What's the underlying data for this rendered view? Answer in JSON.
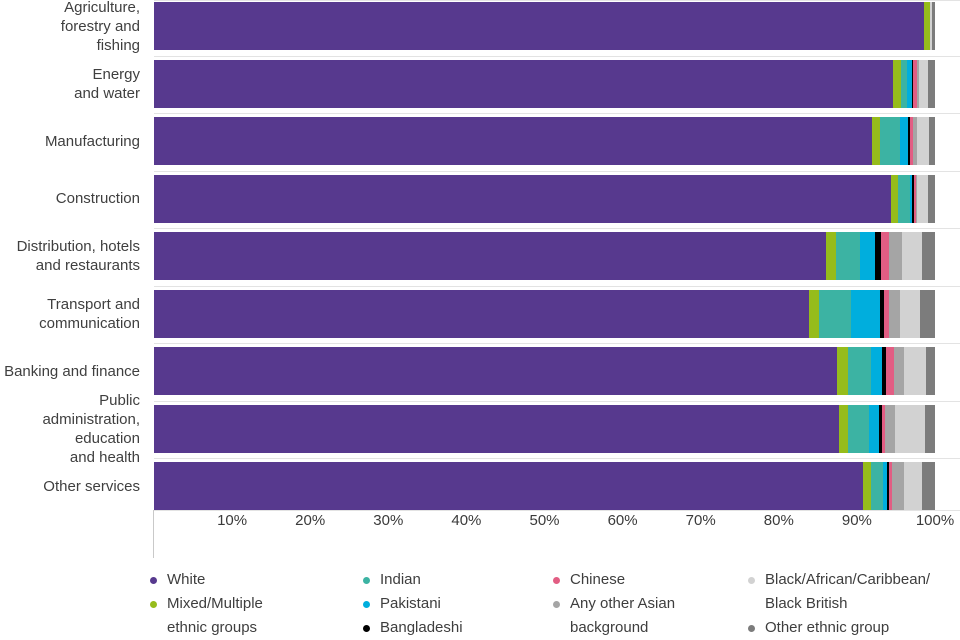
{
  "chart_data": {
    "type": "bar",
    "orientation": "horizontal-stacked",
    "title": "",
    "xlabel": "",
    "ylabel": "",
    "xlim": [
      0,
      100
    ],
    "x_unit": "percent",
    "grid": false,
    "legend_position": "bottom",
    "categories": [
      "Agriculture, forestry and fishing",
      "Energy and water",
      "Manufacturing",
      "Construction",
      "Distribution, hotels and restaurants",
      "Transport and communication",
      "Banking and finance",
      "Public administration, education and health",
      "Other services"
    ],
    "categories_multiline": [
      "Agriculture,\nforestry and\nfishing",
      "Energy\nand water",
      "Manufacturing",
      "Construction",
      "Distribution, hotels\nand restaurants",
      "Transport and\ncommunication",
      "Banking and finance",
      "Public\nadministration,\neducation\nand health",
      "Other services"
    ],
    "series": [
      {
        "name": "White",
        "color": "#57398e",
        "values": [
          98.6,
          94.6,
          91.9,
          94.4,
          86.1,
          83.9,
          87.4,
          87.7,
          90.8
        ]
      },
      {
        "name": "Mixed/Multiple ethnic groups",
        "color": "#96bc1b",
        "values": [
          0.7,
          1.1,
          1.0,
          0.9,
          1.2,
          1.3,
          1.5,
          1.2,
          1.0
        ]
      },
      {
        "name": "Indian",
        "color": "#3cb3a3",
        "values": [
          0.0,
          0.7,
          2.6,
          1.5,
          3.1,
          4.0,
          2.9,
          2.6,
          1.6
        ]
      },
      {
        "name": "Pakistani",
        "color": "#00aedd",
        "values": [
          0.0,
          0.6,
          1.1,
          0.3,
          1.9,
          3.7,
          1.4,
          1.3,
          0.5
        ]
      },
      {
        "name": "Bangladeshi",
        "color": "#000000",
        "values": [
          0.0,
          0.25,
          0.15,
          0.25,
          0.85,
          0.6,
          0.5,
          0.4,
          0.25
        ]
      },
      {
        "name": "Chinese",
        "color": "#e25d83",
        "values": [
          0.0,
          0.5,
          0.5,
          0.2,
          0.95,
          0.6,
          1.1,
          0.45,
          0.4
        ]
      },
      {
        "name": "Any other Asian background",
        "color": "#a5a5a5",
        "values": [
          0.0,
          0.25,
          0.45,
          0.2,
          1.7,
          1.4,
          1.3,
          1.2,
          1.5
        ]
      },
      {
        "name": "Black/African/Caribbean/Black British",
        "color": "#d2d2d2",
        "values": [
          0.3,
          1.1,
          1.5,
          1.4,
          2.5,
          2.6,
          2.7,
          3.9,
          2.3
        ]
      },
      {
        "name": "Other ethnic group",
        "color": "#7c7c7c",
        "values": [
          0.4,
          0.9,
          0.8,
          0.85,
          1.7,
          1.9,
          1.2,
          1.25,
          1.65
        ]
      }
    ]
  },
  "axis": {
    "ticks": [
      "10%",
      "20%",
      "30%",
      "40%",
      "50%",
      "60%",
      "70%",
      "80%",
      "90%",
      "100%"
    ]
  },
  "legend": {
    "columns": [
      [
        {
          "label": "White",
          "display": "White",
          "color": "#57398e"
        },
        {
          "label": "Mixed/Multiple ethnic groups",
          "display": "Mixed/Multiple\nethnic groups",
          "color": "#96bc1b"
        }
      ],
      [
        {
          "label": "Indian",
          "display": "Indian",
          "color": "#3cb3a3"
        },
        {
          "label": "Pakistani",
          "display": "Pakistani",
          "color": "#00aedd"
        },
        {
          "label": "Bangladeshi",
          "display": "Bangladeshi",
          "color": "#000000"
        }
      ],
      [
        {
          "label": "Chinese",
          "display": "Chinese",
          "color": "#e25d83"
        },
        {
          "label": "Any other Asian background",
          "display": "Any other Asian\nbackground",
          "color": "#a5a5a5"
        }
      ],
      [
        {
          "label": "Black/African/Caribbean/Black British",
          "display": "Black/African/Caribbean/\nBlack British",
          "color": "#d2d2d2"
        },
        {
          "label": "Other ethnic group",
          "display": "Other ethnic group",
          "color": "#7c7c7c"
        }
      ]
    ]
  },
  "colors": {
    "separator": "#e3e3e3",
    "axis_line": "#c9c9c9",
    "text": "#3f3f3f",
    "background": "#ffffff"
  }
}
